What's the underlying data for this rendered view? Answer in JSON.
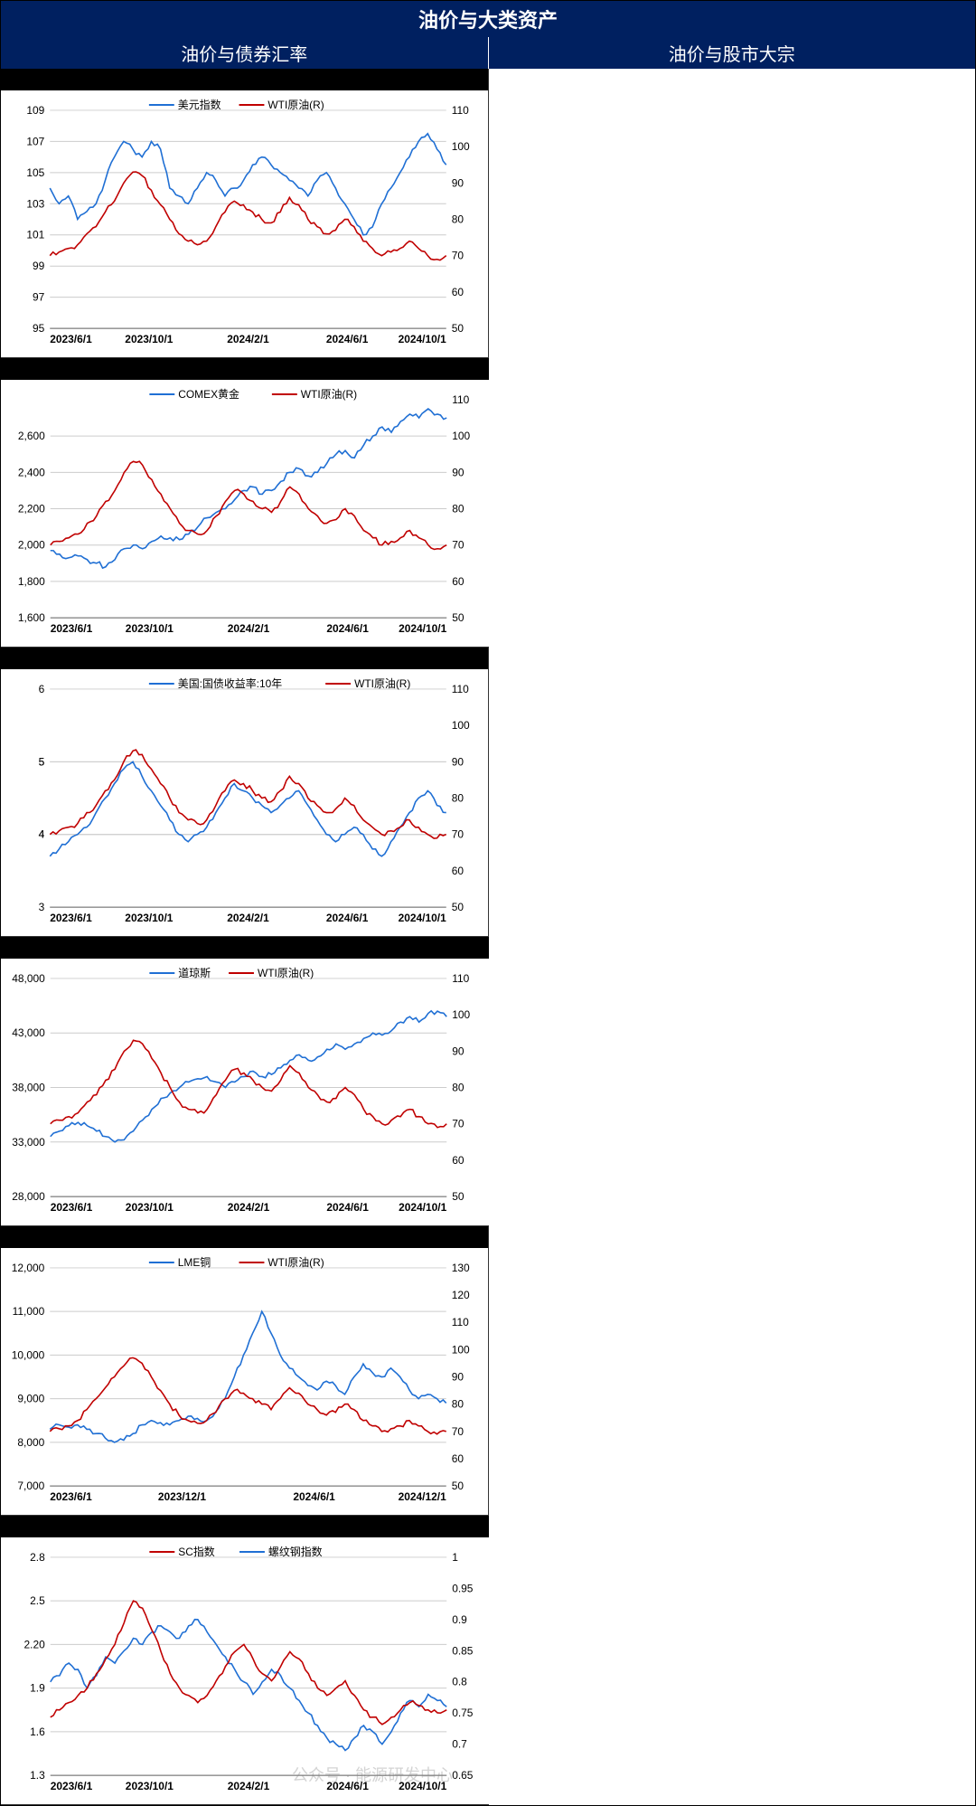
{
  "main_title": "油价与大类资产",
  "left_subtitle": "油价与债券汇率",
  "right_subtitle": "油价与股市大宗",
  "watermark": "公众号 · 能源研发中心",
  "colors": {
    "header_bg": "#002060",
    "header_fg": "#ffffff",
    "blue_line": "#1f6fd4",
    "red_line": "#c00000",
    "grid": "#cccccc",
    "axis": "#000000",
    "bg": "#ffffff"
  },
  "x_labels_five": [
    "2023/6/1",
    "2023/10/1",
    "2024/2/1",
    "2024/6/1",
    "2024/10/1"
  ],
  "x_labels_four": [
    "2023/6/1",
    "2023/12/1",
    "2024/6/1",
    "2024/12/1"
  ],
  "charts": [
    {
      "id": "c1",
      "legend_blue": "美元指数",
      "legend_red": "WTI原油(R)",
      "y1_ticks": [
        95,
        97,
        99,
        101,
        103,
        105,
        107,
        109
      ],
      "y2_ticks": [
        50,
        60,
        70,
        80,
        90,
        100,
        110
      ],
      "y1_min": 95,
      "y1_max": 109,
      "y2_min": 50,
      "y2_max": 110,
      "x_labels": [
        "2023/6/1",
        "2023/10/1",
        "2024/2/1",
        "2024/6/1",
        "2024/10/1"
      ],
      "blue": [
        104,
        103,
        103.5,
        102,
        102.5,
        103,
        104.5,
        106,
        107,
        106.5,
        106,
        107,
        106.5,
        104,
        103.5,
        103,
        104,
        105,
        104.5,
        103.5,
        104,
        104.5,
        105.5,
        106,
        105.5,
        105,
        104.5,
        104,
        103.5,
        104.5,
        105,
        104,
        103,
        102,
        101,
        101.5,
        103,
        104,
        105,
        106,
        107,
        107.5,
        106.5,
        105.5
      ],
      "red": [
        70,
        71,
        72,
        73,
        76,
        78,
        82,
        85,
        90,
        93,
        92,
        88,
        84,
        80,
        76,
        74,
        73,
        74,
        78,
        82,
        85,
        84,
        82,
        80,
        79,
        82,
        86,
        84,
        80,
        78,
        76,
        77,
        80,
        78,
        74,
        72,
        70,
        71,
        72,
        74,
        72,
        70,
        69,
        70
      ]
    },
    {
      "id": "c2",
      "legend_blue": "COMEX黄金",
      "legend_red": "WTI原油(R)",
      "y1_ticks": [
        1600,
        1800,
        2000,
        2200,
        2400,
        2600
      ],
      "y2_ticks": [
        50,
        60,
        70,
        80,
        90,
        100,
        110
      ],
      "y1_min": 1600,
      "y1_max": 2800,
      "y2_min": 50,
      "y2_max": 110,
      "x_labels": [
        "2023/6/1",
        "2023/10/1",
        "2024/2/1",
        "2024/6/1",
        "2024/10/1"
      ],
      "blue": [
        1970,
        1950,
        1930,
        1940,
        1920,
        1900,
        1880,
        1920,
        1980,
        2000,
        1980,
        2020,
        2050,
        2040,
        2030,
        2060,
        2100,
        2150,
        2180,
        2200,
        2250,
        2300,
        2320,
        2280,
        2300,
        2350,
        2400,
        2420,
        2380,
        2400,
        2450,
        2500,
        2520,
        2480,
        2550,
        2600,
        2650,
        2620,
        2680,
        2720,
        2700,
        2750,
        2720,
        2700
      ],
      "red": [
        70,
        71,
        72,
        73,
        76,
        78,
        82,
        85,
        90,
        93,
        92,
        88,
        84,
        80,
        76,
        74,
        73,
        74,
        78,
        82,
        85,
        84,
        82,
        80,
        79,
        82,
        86,
        84,
        80,
        78,
        76,
        77,
        80,
        78,
        74,
        72,
        70,
        71,
        72,
        74,
        72,
        70,
        69,
        70
      ]
    },
    {
      "id": "c3",
      "legend_blue": "美国:国债收益率:10年",
      "legend_red": "WTI原油(R)",
      "y1_ticks": [
        3,
        4,
        4,
        5,
        5,
        6
      ],
      "y2_ticks": [
        50,
        60,
        70,
        80,
        90,
        100,
        110
      ],
      "y1_min": 3,
      "y1_max": 6,
      "y2_min": 50,
      "y2_max": 110,
      "x_labels": [
        "2023/6/1",
        "2023/10/1",
        "2024/2/1",
        "2024/6/1",
        "2024/10/1"
      ],
      "blue": [
        3.7,
        3.8,
        3.9,
        4.0,
        4.1,
        4.3,
        4.5,
        4.7,
        4.9,
        5.0,
        4.8,
        4.6,
        4.4,
        4.2,
        4.0,
        3.9,
        4.0,
        4.1,
        4.3,
        4.5,
        4.7,
        4.6,
        4.5,
        4.4,
        4.3,
        4.4,
        4.5,
        4.6,
        4.4,
        4.2,
        4.0,
        3.9,
        4.0,
        4.1,
        4.0,
        3.8,
        3.7,
        3.9,
        4.1,
        4.3,
        4.5,
        4.6,
        4.4,
        4.3
      ],
      "red": [
        70,
        71,
        72,
        73,
        76,
        78,
        82,
        85,
        90,
        93,
        92,
        88,
        84,
        80,
        76,
        74,
        73,
        74,
        78,
        82,
        85,
        84,
        82,
        80,
        79,
        82,
        86,
        84,
        80,
        78,
        76,
        77,
        80,
        78,
        74,
        72,
        70,
        71,
        72,
        74,
        72,
        70,
        69,
        70
      ]
    },
    {
      "id": "c4",
      "legend_blue": "道琼斯",
      "legend_red": "WTI原油(R)",
      "y1_ticks": [
        28000,
        33000,
        38000,
        43000,
        48000
      ],
      "y2_ticks": [
        50,
        60,
        70,
        80,
        90,
        100,
        110
      ],
      "y1_min": 28000,
      "y1_max": 48000,
      "y2_min": 50,
      "y2_max": 110,
      "x_labels": [
        "2023/6/1",
        "2023/10/1",
        "2024/2/1",
        "2024/6/1",
        "2024/10/1"
      ],
      "blue": [
        33500,
        34000,
        34500,
        34800,
        34500,
        34000,
        33500,
        33000,
        33200,
        34000,
        35000,
        36000,
        37000,
        37500,
        38000,
        38500,
        38800,
        39000,
        38500,
        38000,
        38500,
        39000,
        39500,
        39000,
        39200,
        39800,
        40500,
        41000,
        40500,
        40800,
        41500,
        42000,
        41500,
        42000,
        42500,
        43000,
        42800,
        43200,
        44000,
        44500,
        44000,
        44800,
        45000,
        44500
      ],
      "red": [
        70,
        71,
        72,
        73,
        76,
        78,
        82,
        85,
        90,
        93,
        92,
        88,
        84,
        80,
        76,
        74,
        73,
        74,
        78,
        82,
        85,
        84,
        82,
        80,
        79,
        82,
        86,
        84,
        80,
        78,
        76,
        77,
        80,
        78,
        74,
        72,
        70,
        71,
        72,
        74,
        72,
        70,
        69,
        70
      ]
    },
    {
      "id": "c5",
      "legend_blue": "LME铜",
      "legend_red": "WTI原油(R)",
      "y1_ticks": [
        7000,
        8000,
        9000,
        10000,
        11000,
        12000
      ],
      "y2_ticks": [
        50,
        60,
        70,
        80,
        90,
        100,
        110,
        120,
        130
      ],
      "y1_min": 7000,
      "y1_max": 12000,
      "y2_min": 50,
      "y2_max": 130,
      "x_labels": [
        "2023/6/1",
        "2023/12/1",
        "2024/6/1",
        "2024/12/1"
      ],
      "blue": [
        8300,
        8400,
        8350,
        8400,
        8300,
        8200,
        8100,
        8000,
        8050,
        8200,
        8400,
        8500,
        8450,
        8400,
        8500,
        8600,
        8550,
        8500,
        8700,
        9000,
        9500,
        10000,
        10500,
        11000,
        10500,
        10000,
        9700,
        9500,
        9300,
        9200,
        9400,
        9300,
        9100,
        9500,
        9800,
        9600,
        9500,
        9700,
        9500,
        9200,
        9000,
        9100,
        9000,
        8900
      ],
      "red": [
        70,
        71,
        72,
        74,
        78,
        82,
        86,
        90,
        94,
        97,
        95,
        90,
        85,
        80,
        76,
        74,
        73,
        74,
        77,
        82,
        85,
        84,
        82,
        80,
        78,
        82,
        86,
        84,
        80,
        78,
        76,
        77,
        80,
        78,
        74,
        72,
        70,
        71,
        72,
        74,
        72,
        70,
        69,
        70
      ]
    },
    {
      "id": "c6",
      "legend_blue": "螺纹钢指数",
      "legend_red": "SC指数",
      "legend_red_first": true,
      "y1_ticks": [
        1.3,
        1.6,
        1.9,
        2.2,
        2.5,
        2.8
      ],
      "y2_ticks": [
        0.65,
        0.7,
        0.75,
        0.8,
        0.85,
        0.9,
        0.95,
        1.0
      ],
      "y1_min": 1.3,
      "y1_max": 2.8,
      "y2_min": 0.65,
      "y2_max": 1.0,
      "x_labels": [
        "2023/6/1",
        "2023/10/1",
        "2024/2/1",
        "2024/6/1",
        "2024/10/1"
      ],
      "blue": [
        0.8,
        0.81,
        0.83,
        0.82,
        0.79,
        0.81,
        0.84,
        0.83,
        0.85,
        0.87,
        0.86,
        0.88,
        0.89,
        0.88,
        0.87,
        0.89,
        0.9,
        0.88,
        0.86,
        0.84,
        0.82,
        0.8,
        0.78,
        0.8,
        0.82,
        0.81,
        0.79,
        0.77,
        0.75,
        0.73,
        0.71,
        0.7,
        0.69,
        0.71,
        0.73,
        0.72,
        0.7,
        0.72,
        0.75,
        0.77,
        0.76,
        0.78,
        0.77,
        0.76
      ],
      "blue_axis": "y2",
      "red": [
        1.7,
        1.75,
        1.8,
        1.85,
        1.9,
        2.0,
        2.1,
        2.2,
        2.35,
        2.5,
        2.45,
        2.3,
        2.15,
        2.0,
        1.9,
        1.85,
        1.8,
        1.85,
        1.95,
        2.05,
        2.15,
        2.2,
        2.1,
        2.0,
        1.95,
        2.05,
        2.15,
        2.1,
        2.0,
        1.9,
        1.85,
        1.9,
        1.95,
        1.85,
        1.75,
        1.7,
        1.65,
        1.7,
        1.75,
        1.8,
        1.78,
        1.75,
        1.73,
        1.75
      ],
      "red_axis": "y1"
    }
  ]
}
